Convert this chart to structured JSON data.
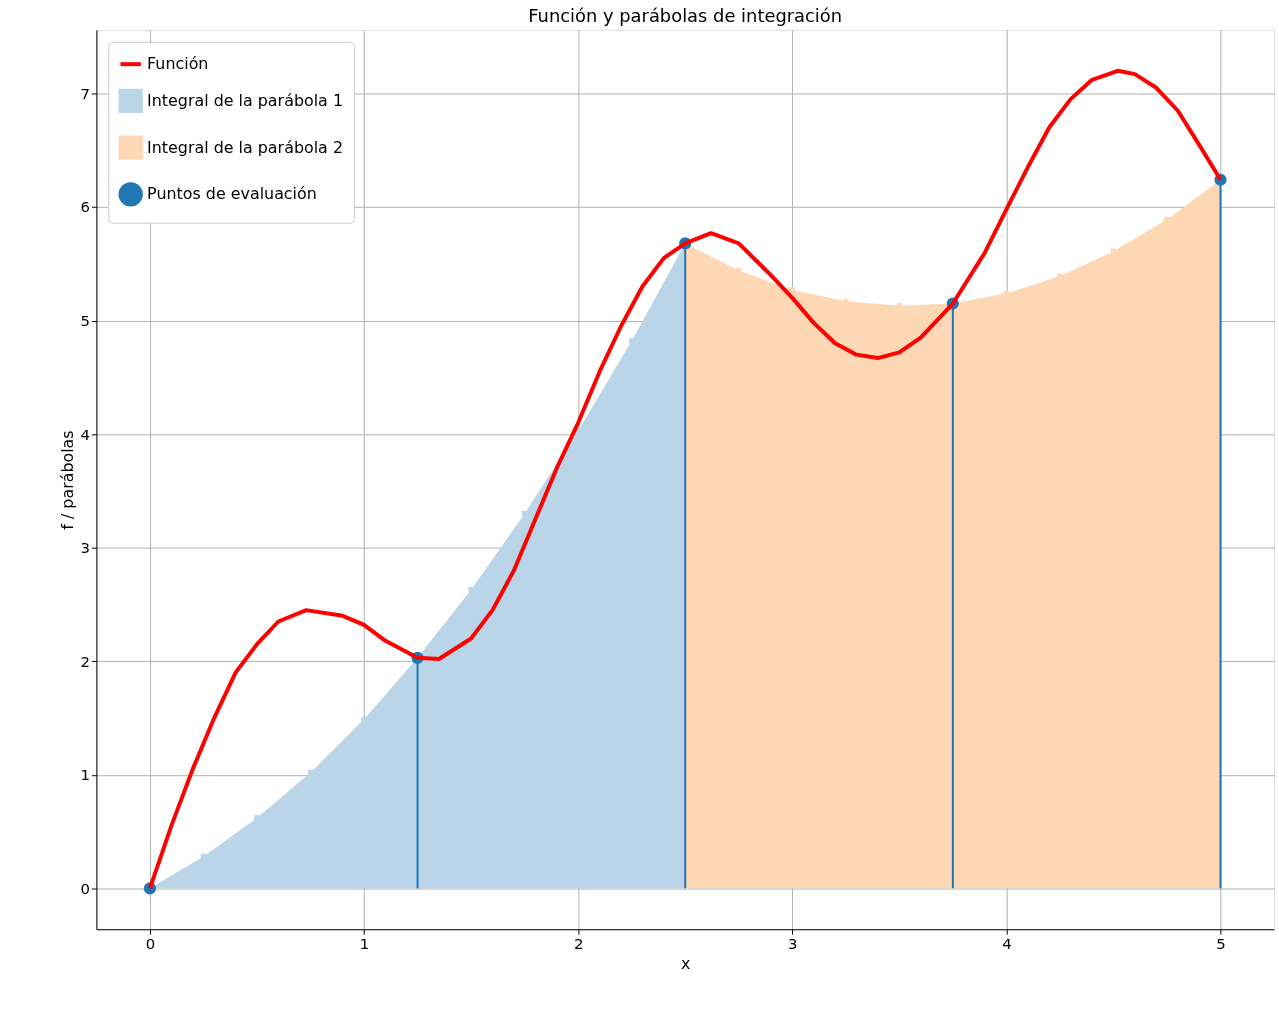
{
  "chart_data": {
    "type": "line",
    "title": "Función y parábolas de integración",
    "xlabel": "x",
    "ylabel": "f / parábolas",
    "xlim": [
      -0.25,
      5.25
    ],
    "xticks": [
      0,
      1,
      2,
      3,
      4,
      5
    ],
    "ylim": [
      -0.36,
      7.56
    ],
    "yticks": [
      0,
      1,
      2,
      3,
      4,
      5,
      6,
      7
    ],
    "grid": true,
    "legend": "top left",
    "series": [
      {
        "name": "Integral de la parábola 1",
        "type": "area",
        "color": "#bbd5e8",
        "x": [
          0,
          0.25,
          0.5,
          0.75,
          1.0,
          1.25,
          1.5,
          1.75,
          2.0,
          2.25,
          2.5
        ],
        "values": [
          0,
          0.28,
          0.62,
          1.02,
          1.49,
          2.03,
          2.63,
          3.3,
          4.03,
          4.82,
          5.68
        ]
      },
      {
        "name": "Integral de la parábola 2",
        "type": "area",
        "color": "#fed7b4",
        "x": [
          2.5,
          2.75,
          3.0,
          3.25,
          3.5,
          3.75,
          4.0,
          4.25,
          4.5,
          4.75,
          5.0
        ],
        "values": [
          5.68,
          5.44,
          5.27,
          5.17,
          5.13,
          5.15,
          5.24,
          5.39,
          5.61,
          5.89,
          6.24
        ]
      },
      {
        "name": "Puntos de evaluación",
        "type": "lollipop",
        "color": "#1f77b4",
        "x": [
          0,
          1.25,
          2.5,
          3.75,
          5.0
        ],
        "values": [
          0,
          2.03,
          5.68,
          5.15,
          6.24
        ]
      },
      {
        "name": "Función",
        "color": "#ff0000",
        "x": [
          0,
          0.1,
          0.2,
          0.3,
          0.4,
          0.5,
          0.6,
          0.73,
          0.9,
          1.0,
          1.1,
          1.25,
          1.35,
          1.5,
          1.6,
          1.7,
          1.8,
          1.9,
          2.0,
          2.1,
          2.2,
          2.3,
          2.4,
          2.5,
          2.62,
          2.75,
          2.9,
          3.0,
          3.1,
          3.2,
          3.3,
          3.4,
          3.5,
          3.6,
          3.75,
          3.9,
          4.0,
          4.1,
          4.2,
          4.3,
          4.4,
          4.52,
          4.6,
          4.7,
          4.8,
          4.9,
          5.0
        ],
        "values": [
          0,
          0.55,
          1.05,
          1.5,
          1.9,
          2.15,
          2.35,
          2.45,
          2.4,
          2.32,
          2.18,
          2.03,
          2.02,
          2.2,
          2.45,
          2.8,
          3.25,
          3.7,
          4.1,
          4.55,
          4.95,
          5.3,
          5.55,
          5.68,
          5.77,
          5.68,
          5.4,
          5.2,
          4.98,
          4.8,
          4.7,
          4.67,
          4.72,
          4.85,
          5.15,
          5.6,
          5.98,
          6.35,
          6.7,
          6.95,
          7.12,
          7.2,
          7.17,
          7.05,
          6.85,
          6.55,
          6.24
        ]
      }
    ]
  }
}
